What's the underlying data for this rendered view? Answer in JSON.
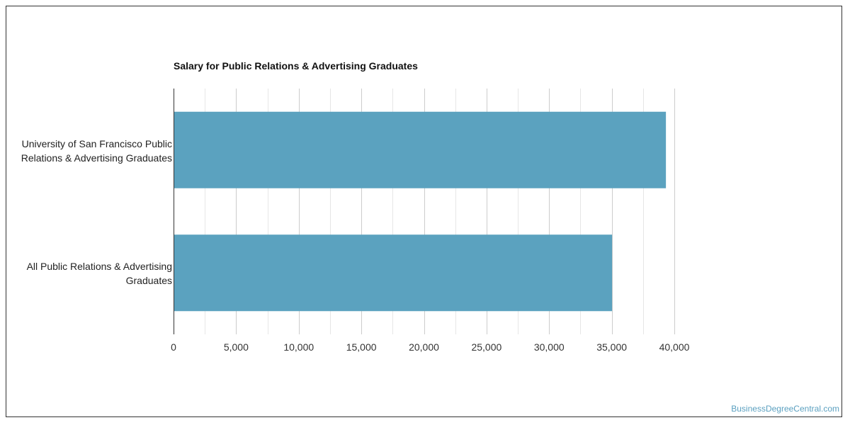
{
  "chart_data": {
    "type": "bar",
    "orientation": "horizontal",
    "title": "Salary for Public Relations & Advertising Graduates",
    "categories": [
      [
        "University of San Francisco Public",
        "Relations & Advertising Graduates"
      ],
      [
        "All Public Relations & Advertising",
        "Graduates"
      ]
    ],
    "series": [
      {
        "values": [
          39300,
          35000
        ],
        "color": "#5ba2bf"
      }
    ],
    "xlim": [
      0,
      40000
    ],
    "x_ticks": [
      "0",
      "5,000",
      "10,000",
      "15,000",
      "20,000",
      "25,000",
      "30,000",
      "35,000",
      "40,000"
    ],
    "grid": true,
    "legend": "none"
  },
  "footer": {
    "watermark": "BusinessDegreeCentral.com"
  }
}
